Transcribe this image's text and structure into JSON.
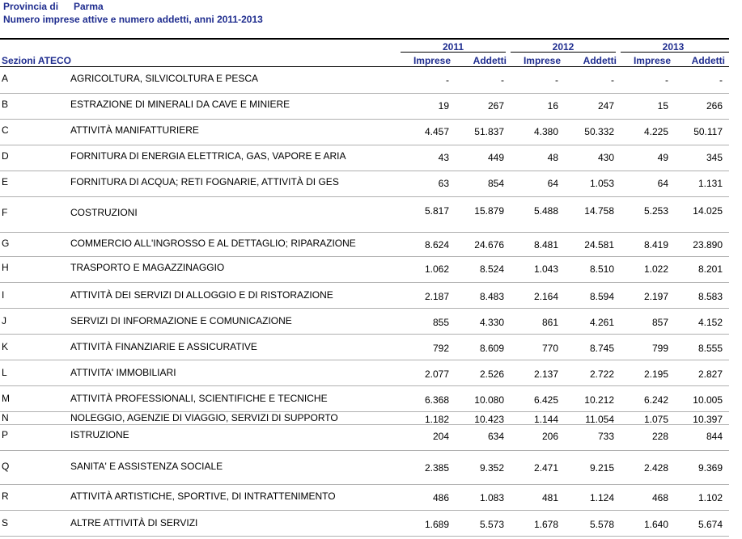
{
  "header": {
    "provincia_label": "Provincia di",
    "provincia_name": "Parma",
    "subtitle": "Numero imprese attive e numero addetti,  anni 2011-2013"
  },
  "table": {
    "section_header": "Sezioni ATECO",
    "years": [
      "2011",
      "2012",
      "2013"
    ],
    "columns": [
      "Imprese",
      "Addetti",
      "Imprese",
      "Addetti",
      "Imprese",
      "Addetti"
    ],
    "rows": [
      {
        "code": "A",
        "desc": "AGRICOLTURA, SILVICOLTURA E PESCA",
        "values": [
          "-",
          "-",
          "-",
          "-",
          "-",
          "-"
        ]
      },
      {
        "code": "B",
        "desc": "ESTRAZIONE DI MINERALI DA CAVE E MINIERE",
        "values": [
          "19",
          "267",
          "16",
          "247",
          "15",
          "266"
        ]
      },
      {
        "code": "C",
        "desc": "ATTIVITÀ MANIFATTURIERE",
        "values": [
          "4.457",
          "51.837",
          "4.380",
          "50.332",
          "4.225",
          "50.117"
        ]
      },
      {
        "code": "D",
        "desc": "FORNITURA DI ENERGIA ELETTRICA, GAS, VAPORE E ARIA",
        "values": [
          "43",
          "449",
          "48",
          "430",
          "49",
          "345"
        ]
      },
      {
        "code": "E",
        "desc": "FORNITURA DI ACQUA; RETI FOGNARIE, ATTIVITÀ DI GES",
        "values": [
          "63",
          "854",
          "64",
          "1.053",
          "64",
          "1.131"
        ]
      },
      {
        "code": "F",
        "desc": "COSTRUZIONI",
        "values": [
          "5.817",
          "15.879",
          "5.488",
          "14.758",
          "5.253",
          "14.025"
        ]
      },
      {
        "code": "G",
        "desc": "COMMERCIO ALL'INGROSSO E AL DETTAGLIO; RIPARAZIONE",
        "values": [
          "8.624",
          "24.676",
          "8.481",
          "24.581",
          "8.419",
          "23.890"
        ]
      },
      {
        "code": "H",
        "desc": "TRASPORTO E MAGAZZINAGGIO",
        "values": [
          "1.062",
          "8.524",
          "1.043",
          "8.510",
          "1.022",
          "8.201"
        ]
      },
      {
        "code": "I",
        "desc": "ATTIVITÀ DEI SERVIZI DI ALLOGGIO E DI RISTORAZIONE",
        "values": [
          "2.187",
          "8.483",
          "2.164",
          "8.594",
          "2.197",
          "8.583"
        ]
      },
      {
        "code": "J",
        "desc": "SERVIZI DI INFORMAZIONE E COMUNICAZIONE",
        "values": [
          "855",
          "4.330",
          "861",
          "4.261",
          "857",
          "4.152"
        ]
      },
      {
        "code": "K",
        "desc": "ATTIVITÀ FINANZIARIE E ASSICURATIVE",
        "values": [
          "792",
          "8.609",
          "770",
          "8.745",
          "799",
          "8.555"
        ]
      },
      {
        "code": "L",
        "desc": "ATTIVITA' IMMOBILIARI",
        "values": [
          "2.077",
          "2.526",
          "2.137",
          "2.722",
          "2.195",
          "2.827"
        ]
      },
      {
        "code": "M",
        "desc": "ATTIVITÀ PROFESSIONALI, SCIENTIFICHE E TECNICHE",
        "values": [
          "6.368",
          "10.080",
          "6.425",
          "10.212",
          "6.242",
          "10.005"
        ]
      },
      {
        "code": "N",
        "desc": "NOLEGGIO, AGENZIE DI VIAGGIO, SERVIZI DI SUPPORTO",
        "values": [
          "1.182",
          "10.423",
          "1.144",
          "11.054",
          "1.075",
          "10.397"
        ]
      },
      {
        "code": "P",
        "desc": "ISTRUZIONE",
        "values": [
          "204",
          "634",
          "206",
          "733",
          "228",
          "844"
        ]
      },
      {
        "code": "Q",
        "desc": "SANITA' E ASSISTENZA SOCIALE",
        "values": [
          "2.385",
          "9.352",
          "2.471",
          "9.215",
          "2.428",
          "9.369"
        ]
      },
      {
        "code": "R",
        "desc": "ATTIVITÀ ARTISTICHE, SPORTIVE, DI INTRATTENIMENTO",
        "values": [
          "486",
          "1.083",
          "481",
          "1.124",
          "468",
          "1.102"
        ]
      },
      {
        "code": "S",
        "desc": "ALTRE ATTIVITÀ DI SERVIZI",
        "values": [
          "1.689",
          "5.573",
          "1.678",
          "5.578",
          "1.640",
          "5.674"
        ]
      }
    ]
  }
}
